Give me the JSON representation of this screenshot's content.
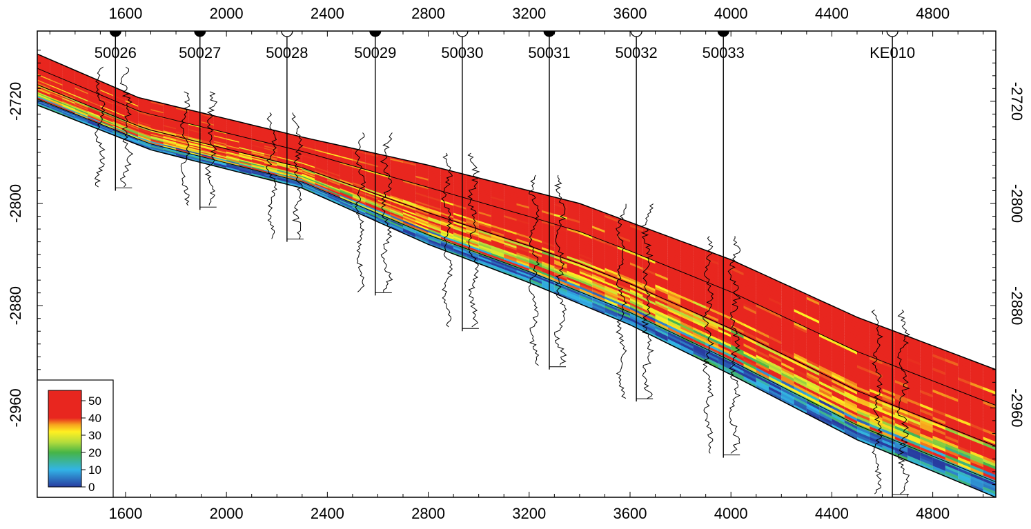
{
  "chart_data": {
    "type": "cross-section",
    "xlabel": "",
    "ylabel": "",
    "xlim": [
      1250,
      5050
    ],
    "ylim": [
      -2665,
      -3030
    ],
    "x_ticks": [
      1600,
      2000,
      2400,
      2800,
      3200,
      3600,
      4000,
      4400,
      4800
    ],
    "x_tick_labels": [
      "1600",
      "2000",
      "2400",
      "2800",
      "3200",
      "3600",
      "4000",
      "4400",
      "4800"
    ],
    "y_ticks": [
      -2720,
      -2800,
      -2880,
      -2960
    ],
    "y_tick_labels": [
      "-2720",
      "-2800",
      "-2880",
      "-2960"
    ],
    "wells": [
      {
        "name": "50026",
        "x": 1560,
        "marker": "filled",
        "bottom": -2790
      },
      {
        "name": "50027",
        "x": 1895,
        "marker": "filled",
        "bottom": -2805
      },
      {
        "name": "50028",
        "x": 2240,
        "marker": "open",
        "bottom": -2830
      },
      {
        "name": "50029",
        "x": 2590,
        "marker": "filled",
        "bottom": -2872
      },
      {
        "name": "50030",
        "x": 2935,
        "marker": "open",
        "bottom": -2900
      },
      {
        "name": "50031",
        "x": 3280,
        "marker": "filled",
        "bottom": -2930
      },
      {
        "name": "50032",
        "x": 3625,
        "marker": "open",
        "bottom": -2955
      },
      {
        "name": "50033",
        "x": 3970,
        "marker": "filled",
        "bottom": -2999
      },
      {
        "name": "KE010",
        "x": 4640,
        "marker": "open",
        "bottom": -3030
      }
    ],
    "top_surface": [
      [
        1250,
        -2683
      ],
      [
        1650,
        -2717
      ],
      [
        2300,
        -2748
      ],
      [
        2800,
        -2770
      ],
      [
        3400,
        -2800
      ],
      [
        4000,
        -2844
      ],
      [
        4500,
        -2889
      ],
      [
        5050,
        -2930
      ]
    ],
    "base_surface": [
      [
        1250,
        -2723
      ],
      [
        1700,
        -2758
      ],
      [
        2300,
        -2788
      ],
      [
        2800,
        -2832
      ],
      [
        3200,
        -2862
      ],
      [
        3600,
        -2895
      ],
      [
        4000,
        -2934
      ],
      [
        4500,
        -2985
      ],
      [
        5050,
        -3030
      ]
    ],
    "legend": {
      "title": "",
      "ticks": [
        "50",
        "40",
        "30",
        "20",
        "10",
        "0"
      ],
      "color_stops": [
        {
          "value": 56,
          "color": "#e8261f"
        },
        {
          "value": 40,
          "color": "#e8261f"
        },
        {
          "value": 36,
          "color": "#f7a51e"
        },
        {
          "value": 32,
          "color": "#fff021"
        },
        {
          "value": 26,
          "color": "#b4dc3c"
        },
        {
          "value": 20,
          "color": "#46b446"
        },
        {
          "value": 10,
          "color": "#32b4e6"
        },
        {
          "value": 0,
          "color": "#283ca0"
        }
      ]
    }
  }
}
